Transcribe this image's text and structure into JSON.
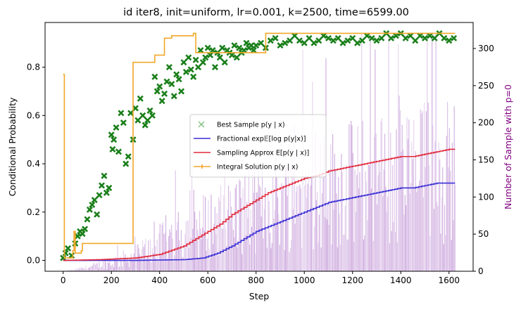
{
  "chart_data": {
    "type": "line",
    "title": "id iter8, init=uniform, lr=0.001, k=2500, time=6599.00",
    "xlabel": "Step",
    "ylabel": "Conditional Probability",
    "ylabel_right": "Number of Sample with p=0",
    "xlim": [
      -75,
      1700
    ],
    "ylim": [
      -0.045,
      0.985
    ],
    "ylim_right": [
      0,
      335
    ],
    "x_ticks": [
      0,
      200,
      400,
      600,
      800,
      1000,
      1200,
      1400,
      1600
    ],
    "y_ticks": [
      0.0,
      0.2,
      0.4,
      0.6,
      0.8
    ],
    "y_tick_labels": [
      "0.0",
      "0.2",
      "0.4",
      "0.6",
      "0.8"
    ],
    "y_ticks_right": [
      0,
      50,
      100,
      150,
      200,
      250,
      300
    ],
    "legend_position": "center-right",
    "series": [
      {
        "name": "Best Sample $p(y \\mid x)$",
        "label": "Best Sample p(y | x)",
        "type": "scatter",
        "marker": "x",
        "color": "#1a7f1a",
        "legend_color": "#7fbf7f",
        "points": [
          [
            0,
            0.01
          ],
          [
            10,
            0.03
          ],
          [
            20,
            0.05
          ],
          [
            35,
            0.02
          ],
          [
            50,
            0.07
          ],
          [
            60,
            0.1
          ],
          [
            70,
            0.12
          ],
          [
            80,
            0.11
          ],
          [
            90,
            0.13
          ],
          [
            100,
            0.17
          ],
          [
            110,
            0.21
          ],
          [
            120,
            0.23
          ],
          [
            130,
            0.25
          ],
          [
            140,
            0.19
          ],
          [
            150,
            0.27
          ],
          [
            160,
            0.31
          ],
          [
            170,
            0.35
          ],
          [
            180,
            0.28
          ],
          [
            190,
            0.3
          ],
          [
            200,
            0.52
          ],
          [
            205,
            0.46
          ],
          [
            210,
            0.5
          ],
          [
            220,
            0.55
          ],
          [
            230,
            0.45
          ],
          [
            240,
            0.61
          ],
          [
            250,
            0.57
          ],
          [
            260,
            0.4
          ],
          [
            270,
            0.43
          ],
          [
            280,
            0.61
          ],
          [
            290,
            0.5
          ],
          [
            300,
            0.63
          ],
          [
            310,
            0.58
          ],
          [
            320,
            0.67
          ],
          [
            330,
            0.6
          ],
          [
            340,
            0.56
          ],
          [
            350,
            0.58
          ],
          [
            360,
            0.62
          ],
          [
            370,
            0.6
          ],
          [
            380,
            0.76
          ],
          [
            390,
            0.7
          ],
          [
            400,
            0.72
          ],
          [
            410,
            0.66
          ],
          [
            420,
            0.69
          ],
          [
            430,
            0.74
          ],
          [
            440,
            0.8
          ],
          [
            450,
            0.73
          ],
          [
            460,
            0.68
          ],
          [
            470,
            0.77
          ],
          [
            480,
            0.75
          ],
          [
            490,
            0.7
          ],
          [
            500,
            0.82
          ],
          [
            510,
            0.78
          ],
          [
            520,
            0.84
          ],
          [
            530,
            0.79
          ],
          [
            540,
            0.76
          ],
          [
            550,
            0.83
          ],
          [
            560,
            0.8
          ],
          [
            570,
            0.87
          ],
          [
            580,
            0.82
          ],
          [
            590,
            0.84
          ],
          [
            600,
            0.88
          ],
          [
            610,
            0.85
          ],
          [
            620,
            0.87
          ],
          [
            630,
            0.8
          ],
          [
            640,
            0.86
          ],
          [
            650,
            0.84
          ],
          [
            660,
            0.88
          ],
          [
            670,
            0.82
          ],
          [
            680,
            0.87
          ],
          [
            690,
            0.86
          ],
          [
            700,
            0.85
          ],
          [
            710,
            0.89
          ],
          [
            720,
            0.84
          ],
          [
            730,
            0.88
          ],
          [
            740,
            0.86
          ],
          [
            750,
            0.87
          ],
          [
            760,
            0.9
          ],
          [
            770,
            0.88
          ],
          [
            780,
            0.89
          ],
          [
            790,
            0.87
          ],
          [
            800,
            0.89
          ],
          [
            820,
            0.9
          ],
          [
            840,
            0.88
          ],
          [
            860,
            0.91
          ],
          [
            880,
            0.92
          ],
          [
            900,
            0.89
          ],
          [
            920,
            0.9
          ],
          [
            940,
            0.91
          ],
          [
            960,
            0.93
          ],
          [
            980,
            0.91
          ],
          [
            1000,
            0.9
          ],
          [
            1020,
            0.92
          ],
          [
            1040,
            0.9
          ],
          [
            1060,
            0.91
          ],
          [
            1080,
            0.93
          ],
          [
            1100,
            0.92
          ],
          [
            1120,
            0.91
          ],
          [
            1140,
            0.92
          ],
          [
            1160,
            0.9
          ],
          [
            1180,
            0.91
          ],
          [
            1200,
            0.92
          ],
          [
            1220,
            0.9
          ],
          [
            1240,
            0.91
          ],
          [
            1260,
            0.93
          ],
          [
            1280,
            0.92
          ],
          [
            1300,
            0.91
          ],
          [
            1320,
            0.92
          ],
          [
            1340,
            0.94
          ],
          [
            1360,
            0.92
          ],
          [
            1380,
            0.93
          ],
          [
            1400,
            0.94
          ],
          [
            1420,
            0.92
          ],
          [
            1440,
            0.93
          ],
          [
            1460,
            0.91
          ],
          [
            1480,
            0.93
          ],
          [
            1500,
            0.92
          ],
          [
            1520,
            0.93
          ],
          [
            1540,
            0.92
          ],
          [
            1560,
            0.94
          ],
          [
            1580,
            0.92
          ],
          [
            1600,
            0.91
          ],
          [
            1620,
            0.92
          ]
        ]
      },
      {
        "name": "Fractional $\\exp\\mathbb{E}[\\log p(y|x)]$",
        "label": "Fractional exp𝔼[log p(y|x)]",
        "type": "line",
        "color": "#3a2fd6",
        "points": [
          [
            0,
            0.0
          ],
          [
            300,
            0.0
          ],
          [
            500,
            0.003
          ],
          [
            580,
            0.01
          ],
          [
            640,
            0.03
          ],
          [
            700,
            0.06
          ],
          [
            750,
            0.09
          ],
          [
            800,
            0.12
          ],
          [
            850,
            0.14
          ],
          [
            900,
            0.16
          ],
          [
            950,
            0.18
          ],
          [
            1000,
            0.2
          ],
          [
            1050,
            0.22
          ],
          [
            1100,
            0.24
          ],
          [
            1150,
            0.25
          ],
          [
            1200,
            0.26
          ],
          [
            1250,
            0.27
          ],
          [
            1300,
            0.28
          ],
          [
            1350,
            0.29
          ],
          [
            1400,
            0.3
          ],
          [
            1450,
            0.3
          ],
          [
            1500,
            0.31
          ],
          [
            1550,
            0.32
          ],
          [
            1600,
            0.32
          ],
          [
            1625,
            0.32
          ]
        ]
      },
      {
        "name": "Sampling Approx $E[p(y \\mid x)]$",
        "label": "Sampling Approx E[p(y | x)]",
        "type": "line",
        "color": "#e2283a",
        "points": [
          [
            0,
            0.0
          ],
          [
            150,
            0.003
          ],
          [
            300,
            0.01
          ],
          [
            400,
            0.025
          ],
          [
            500,
            0.06
          ],
          [
            550,
            0.09
          ],
          [
            600,
            0.12
          ],
          [
            650,
            0.15
          ],
          [
            700,
            0.19
          ],
          [
            750,
            0.22
          ],
          [
            800,
            0.25
          ],
          [
            850,
            0.28
          ],
          [
            900,
            0.3
          ],
          [
            950,
            0.32
          ],
          [
            1000,
            0.34
          ],
          [
            1050,
            0.35
          ],
          [
            1100,
            0.37
          ],
          [
            1150,
            0.38
          ],
          [
            1200,
            0.39
          ],
          [
            1250,
            0.4
          ],
          [
            1300,
            0.41
          ],
          [
            1350,
            0.42
          ],
          [
            1400,
            0.43
          ],
          [
            1450,
            0.43
          ],
          [
            1500,
            0.44
          ],
          [
            1550,
            0.45
          ],
          [
            1600,
            0.46
          ],
          [
            1625,
            0.46
          ]
        ]
      },
      {
        "name": "Integral Solution $p(y \\mid x)$",
        "label": "Integral Solution p(y | x)",
        "type": "step",
        "color": "#f2a729",
        "points": [
          [
            0,
            0.77
          ],
          [
            5,
            0.01
          ],
          [
            40,
            0.04
          ],
          [
            45,
            0.12
          ],
          [
            50,
            0.03
          ],
          [
            75,
            0.04
          ],
          [
            80,
            0.07
          ],
          [
            290,
            0.82
          ],
          [
            380,
            0.85
          ],
          [
            420,
            0.92
          ],
          [
            450,
            0.93
          ],
          [
            540,
            0.94
          ],
          [
            550,
            0.86
          ],
          [
            840,
            0.94
          ],
          [
            1625,
            0.94
          ]
        ]
      }
    ],
    "bars": {
      "name": "Number of Sample with p=0",
      "axis": "right",
      "color": "#b37bcc",
      "x_range": [
        0,
        1625
      ],
      "step": 4,
      "envelope": [
        [
          0,
          0
        ],
        [
          50,
          2
        ],
        [
          100,
          5
        ],
        [
          200,
          12
        ],
        [
          300,
          22
        ],
        [
          400,
          38
        ],
        [
          500,
          52
        ],
        [
          600,
          65
        ],
        [
          700,
          78
        ],
        [
          800,
          88
        ],
        [
          900,
          98
        ],
        [
          1000,
          106
        ],
        [
          1100,
          114
        ],
        [
          1200,
          120
        ],
        [
          1300,
          126
        ],
        [
          1400,
          132
        ],
        [
          1500,
          138
        ],
        [
          1625,
          142
        ]
      ],
      "spread": 1.45,
      "spike_max": 320
    }
  }
}
